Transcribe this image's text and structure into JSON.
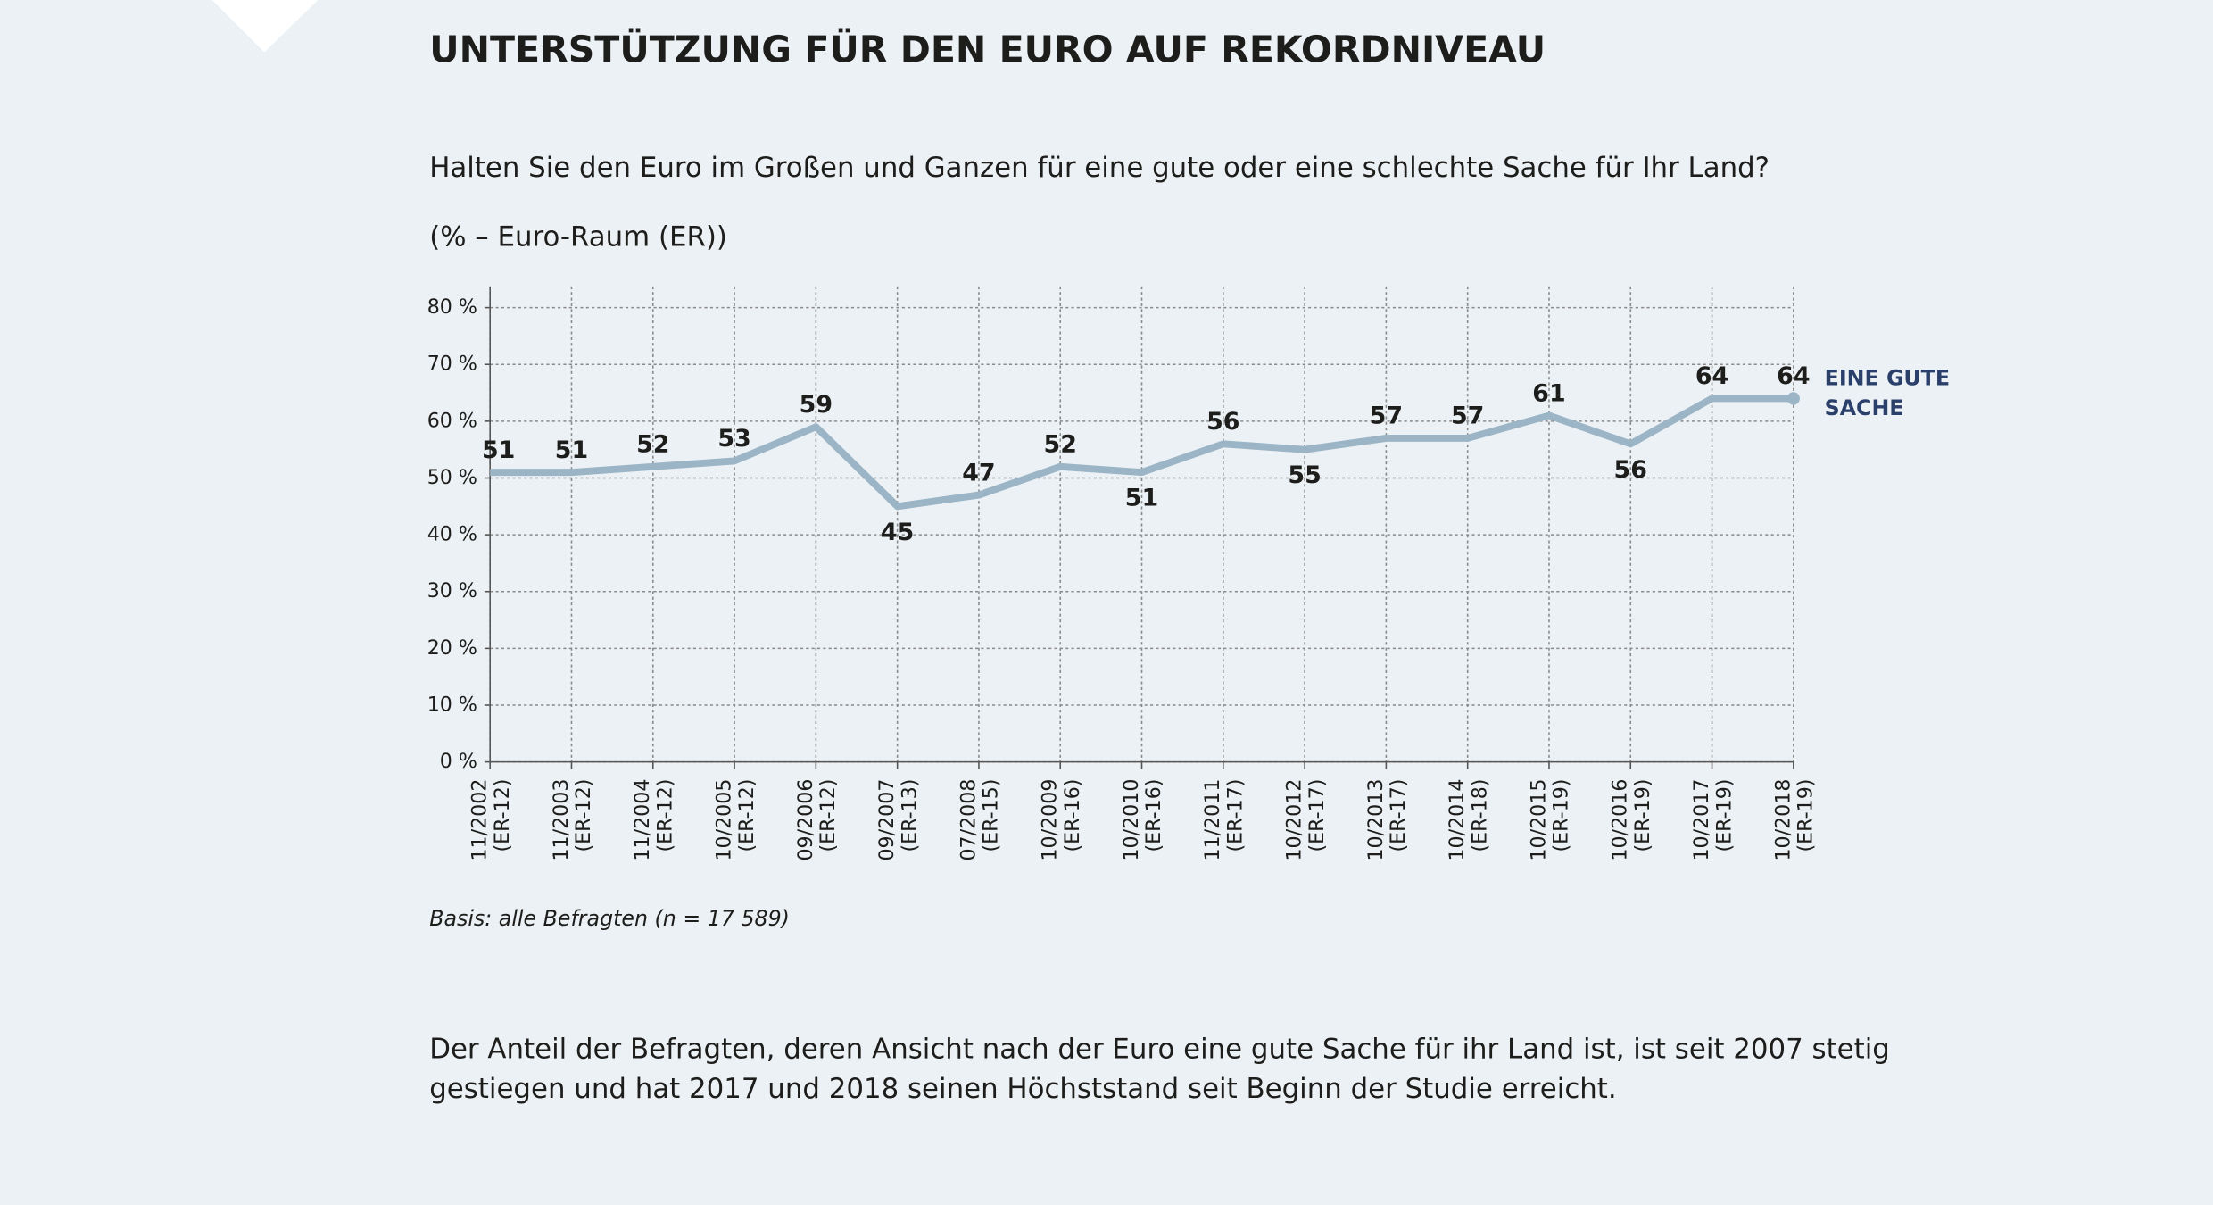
{
  "chart_data": {
    "type": "line",
    "title": "UNTERSTÜTZUNG FÜR DEN EURO AUF REKORDNIVEAU",
    "subtitle": "Halten Sie den Euro im Großen und Ganzen für eine gute oder eine schlechte Sache für Ihr Land?",
    "unit_label": "(% – Euro-Raum (ER))",
    "note": "Basis: alle Befragten (n = 17 589)",
    "text": "Der Anteil der Befragten, deren Ansicht nach der Euro eine gute Sache für ihr Land ist, ist seit 2007 stetig gestiegen und hat 2017 und 2018 seinen Höchststand seit Beginn der Studie erreicht.",
    "categories": [
      [
        "11/2002",
        "(ER-12)"
      ],
      [
        "11/2003",
        "(ER-12)"
      ],
      [
        "11/2004",
        "(ER-12)"
      ],
      [
        "10/2005",
        "(ER-12)"
      ],
      [
        "09/2006",
        "(ER-12)"
      ],
      [
        "09/2007",
        "(ER-13)"
      ],
      [
        "07/2008",
        "(ER-15)"
      ],
      [
        "10/2009",
        "(ER-16)"
      ],
      [
        "10/2010",
        "(ER-16)"
      ],
      [
        "11/2011",
        "(ER-17)"
      ],
      [
        "10/2012",
        "(ER-17)"
      ],
      [
        "10/2013",
        "(ER-17)"
      ],
      [
        "10/2014",
        "(ER-18)"
      ],
      [
        "10/2015",
        "(ER-19)"
      ],
      [
        "10/2016",
        "(ER-19)"
      ],
      [
        "10/2017",
        "(ER-19)"
      ],
      [
        "10/2018",
        "(ER-19)"
      ]
    ],
    "series": [
      {
        "name": "EINE GUTE SACHE",
        "color": "#9bb5c6",
        "values": [
          51,
          51,
          52,
          53,
          59,
          45,
          47,
          52,
          51,
          56,
          55,
          57,
          57,
          61,
          56,
          64,
          64
        ]
      }
    ],
    "ylim": [
      0,
      80
    ],
    "yticks": [
      {
        "value": 0,
        "label": "0 %"
      },
      {
        "value": 10,
        "label": "10 %"
      },
      {
        "value": 20,
        "label": "20 %"
      },
      {
        "value": 30,
        "label": "30 %"
      },
      {
        "value": 40,
        "label": "40 %"
      },
      {
        "value": 50,
        "label": "50 %"
      },
      {
        "value": 60,
        "label": "60 %"
      },
      {
        "value": 70,
        "label": "70 %"
      },
      {
        "value": 80,
        "label": "80 %"
      }
    ],
    "grid": true,
    "label_color": "#2b3f6b"
  }
}
